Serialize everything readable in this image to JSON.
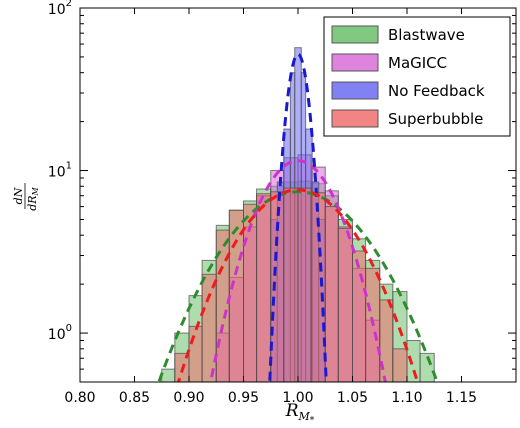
{
  "chart_data": {
    "type": "histogram",
    "xlabel_main": "R",
    "xlabel_sub": "M",
    "xlabel_subsub": "*",
    "ylabel_num": "dN",
    "ylabel_den": "dR",
    "ylabel_den_sub": "M",
    "xlim": [
      0.8,
      1.2
    ],
    "ylim": [
      0.5,
      100
    ],
    "yscale": "log",
    "x_ticks": [
      0.8,
      0.85,
      0.9,
      0.95,
      1.0,
      1.05,
      1.1,
      1.15
    ],
    "x_tick_labels": [
      "0.80",
      "0.85",
      "0.90",
      "0.95",
      "1.00",
      "1.05",
      "1.10",
      "1.15"
    ],
    "y_ticks": [
      1,
      10,
      100
    ],
    "y_tick_base": [
      "10",
      "10",
      "10"
    ],
    "y_tick_exp": [
      "0",
      "1",
      "2"
    ],
    "legend_position": "top-right",
    "series": [
      {
        "name": "Blastwave",
        "color": "#6bbf6b",
        "fit_color": "#2e8b2e",
        "fit": {
          "mu": 1.0,
          "sigma": 0.055,
          "amp": 7.4
        },
        "bins": [
          {
            "x0": 0.875,
            "x1": 0.887,
            "y": 0.6
          },
          {
            "x0": 0.887,
            "x1": 0.9,
            "y": 1.0
          },
          {
            "x0": 0.9,
            "x1": 0.912,
            "y": 1.7
          },
          {
            "x0": 0.912,
            "x1": 0.925,
            "y": 2.8
          },
          {
            "x0": 0.925,
            "x1": 0.937,
            "y": 4.6
          },
          {
            "x0": 0.937,
            "x1": 0.95,
            "y": 5.7
          },
          {
            "x0": 0.95,
            "x1": 0.962,
            "y": 6.5
          },
          {
            "x0": 0.962,
            "x1": 0.975,
            "y": 7.7
          },
          {
            "x0": 0.975,
            "x1": 0.987,
            "y": 8.0
          },
          {
            "x0": 0.987,
            "x1": 1.0,
            "y": 8.5
          },
          {
            "x0": 1.0,
            "x1": 1.012,
            "y": 8.6
          },
          {
            "x0": 1.012,
            "x1": 1.025,
            "y": 8.3
          },
          {
            "x0": 1.025,
            "x1": 1.037,
            "y": 7.0
          },
          {
            "x0": 1.037,
            "x1": 1.05,
            "y": 5.0
          },
          {
            "x0": 1.05,
            "x1": 1.062,
            "y": 3.8
          },
          {
            "x0": 1.062,
            "x1": 1.075,
            "y": 2.8
          },
          {
            "x0": 1.075,
            "x1": 1.087,
            "y": 2.0
          },
          {
            "x0": 1.087,
            "x1": 1.1,
            "y": 1.8
          },
          {
            "x0": 1.1,
            "x1": 1.112,
            "y": 0.9
          },
          {
            "x0": 1.112,
            "x1": 1.125,
            "y": 0.75
          }
        ]
      },
      {
        "name": "MaGICC",
        "color": "#d86ed8",
        "fit_color": "#cc33cc",
        "fit": {
          "mu": 1.0,
          "sigma": 0.032,
          "amp": 11.5
        },
        "bins": [
          {
            "x0": 0.925,
            "x1": 0.937,
            "y": 1.0
          },
          {
            "x0": 0.937,
            "x1": 0.95,
            "y": 2.2
          },
          {
            "x0": 0.95,
            "x1": 0.962,
            "y": 4.5
          },
          {
            "x0": 0.962,
            "x1": 0.975,
            "y": 7.0
          },
          {
            "x0": 0.975,
            "x1": 0.987,
            "y": 10.0
          },
          {
            "x0": 0.987,
            "x1": 1.0,
            "y": 12.0
          },
          {
            "x0": 1.0,
            "x1": 1.012,
            "y": 12.5
          },
          {
            "x0": 1.012,
            "x1": 1.025,
            "y": 10.5
          },
          {
            "x0": 1.025,
            "x1": 1.037,
            "y": 7.5
          },
          {
            "x0": 1.037,
            "x1": 1.05,
            "y": 4.5
          },
          {
            "x0": 1.05,
            "x1": 1.062,
            "y": 2.5
          },
          {
            "x0": 1.062,
            "x1": 1.075,
            "y": 1.2
          }
        ]
      },
      {
        "name": "No Feedback",
        "color": "#6b6bf2",
        "fit_color": "#1a1acc",
        "fit": {
          "mu": 1.0,
          "sigma": 0.0085,
          "amp": 52
        },
        "bins": [
          {
            "x0": 0.975,
            "x1": 0.981,
            "y": 5.0
          },
          {
            "x0": 0.981,
            "x1": 0.987,
            "y": 8.5
          },
          {
            "x0": 0.987,
            "x1": 0.993,
            "y": 18.0
          },
          {
            "x0": 0.993,
            "x1": 0.997,
            "y": 40.0
          },
          {
            "x0": 0.997,
            "x1": 1.003,
            "y": 57.0
          },
          {
            "x0": 1.003,
            "x1": 1.007,
            "y": 40.0
          },
          {
            "x0": 1.007,
            "x1": 1.013,
            "y": 18.0
          },
          {
            "x0": 1.013,
            "x1": 1.019,
            "y": 8.5
          },
          {
            "x0": 1.019,
            "x1": 1.025,
            "y": 5.0
          }
        ]
      },
      {
        "name": "Superbubble",
        "color": "#f06e6e",
        "fit_color": "#ee1c1c",
        "fit": {
          "mu": 1.0,
          "sigma": 0.047,
          "amp": 7.6
        },
        "bins": [
          {
            "x0": 0.887,
            "x1": 0.9,
            "y": 0.75
          },
          {
            "x0": 0.9,
            "x1": 0.912,
            "y": 1.1
          },
          {
            "x0": 0.912,
            "x1": 0.925,
            "y": 2.3
          },
          {
            "x0": 0.925,
            "x1": 0.937,
            "y": 4.3
          },
          {
            "x0": 0.937,
            "x1": 0.95,
            "y": 5.7
          },
          {
            "x0": 0.95,
            "x1": 0.962,
            "y": 6.2
          },
          {
            "x0": 0.962,
            "x1": 0.975,
            "y": 7.2
          },
          {
            "x0": 0.975,
            "x1": 0.987,
            "y": 7.4
          },
          {
            "x0": 0.987,
            "x1": 1.0,
            "y": 7.8
          },
          {
            "x0": 1.0,
            "x1": 1.012,
            "y": 7.8
          },
          {
            "x0": 1.012,
            "x1": 1.025,
            "y": 7.3
          },
          {
            "x0": 1.025,
            "x1": 1.037,
            "y": 6.0
          },
          {
            "x0": 1.037,
            "x1": 1.05,
            "y": 4.4
          },
          {
            "x0": 1.05,
            "x1": 1.062,
            "y": 3.2
          },
          {
            "x0": 1.062,
            "x1": 1.075,
            "y": 2.5
          },
          {
            "x0": 1.075,
            "x1": 1.087,
            "y": 1.6
          },
          {
            "x0": 1.087,
            "x1": 1.1,
            "y": 0.8
          }
        ]
      }
    ]
  }
}
